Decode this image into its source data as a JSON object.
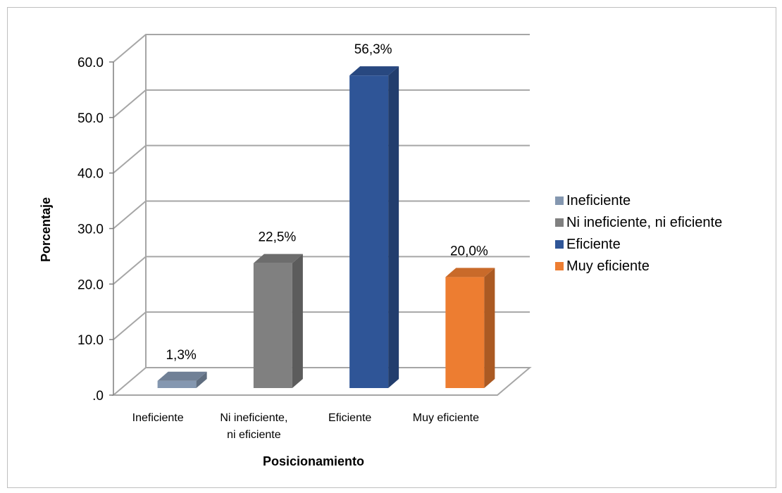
{
  "chart_data": {
    "type": "bar",
    "title": "",
    "xlabel": "Posicionamiento",
    "ylabel": "Porcentaje",
    "ylim": [
      0,
      60
    ],
    "yticks": [
      0,
      10,
      20,
      30,
      40,
      50,
      60
    ],
    "ytick_labels": [
      ".0",
      "10.0",
      "20.0",
      "30.0",
      "40.0",
      "50.0",
      "60.0"
    ],
    "categories": [
      "Ineficiente",
      "Ni ineficiente, ni eficiente",
      "Eficiente",
      "Muy eficiente"
    ],
    "category_labels": [
      [
        "Ineficiente"
      ],
      [
        "Ni ineficiente,",
        "ni eficiente"
      ],
      [
        "Eficiente"
      ],
      [
        "Muy eficiente"
      ]
    ],
    "values": [
      1.3,
      22.5,
      56.3,
      20.0
    ],
    "data_labels": [
      "1,3%",
      "22,5%",
      "56,3%",
      "20,0%"
    ],
    "colors": [
      "#8497b0",
      "#808080",
      "#2f5597",
      "#ed7d31"
    ],
    "legend": {
      "position": "right",
      "entries": [
        "Ineficiente",
        "Ni ineficiente, ni eficiente",
        "Eficiente",
        "Muy eficiente"
      ]
    },
    "grid": true,
    "style": "3d-column"
  }
}
